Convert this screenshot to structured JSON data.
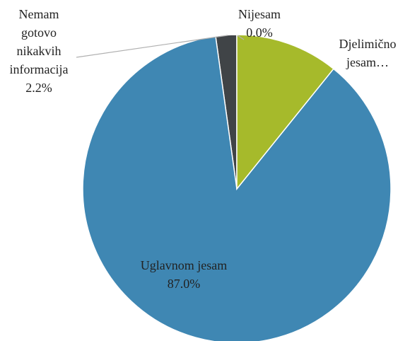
{
  "chart_data": {
    "type": "pie",
    "categories": [
      "Nijesam",
      "Djelimično jesam…",
      "Uglavnom jesam",
      "Nemam gotovo nikakvih informacija"
    ],
    "values": [
      0.0,
      10.8,
      87.0,
      2.2
    ],
    "value_labels": [
      "0.0%",
      null,
      "87.0%",
      "2.2%"
    ],
    "colors": [
      "#7f7f7f",
      "#a6ba2b",
      "#3f87b3",
      "#404447"
    ]
  }
}
